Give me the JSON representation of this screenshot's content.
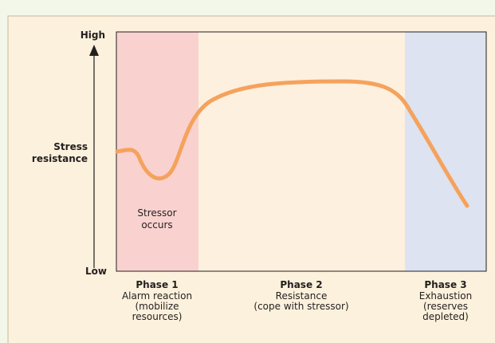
{
  "axis": {
    "high": "High",
    "low": "Low",
    "label": [
      "Stress",
      "resistance"
    ]
  },
  "annotation": [
    "Stressor",
    "occurs"
  ],
  "phases": [
    {
      "title": "Phase 1",
      "lines": [
        "Alarm reaction",
        "(mobilize",
        "resources)"
      ]
    },
    {
      "title": "Phase 2",
      "lines": [
        "Resistance",
        "(cope with stressor)"
      ]
    },
    {
      "title": "Phase 3",
      "lines": [
        "Exhaustion",
        "(reserves",
        "depleted)"
      ]
    }
  ]
}
